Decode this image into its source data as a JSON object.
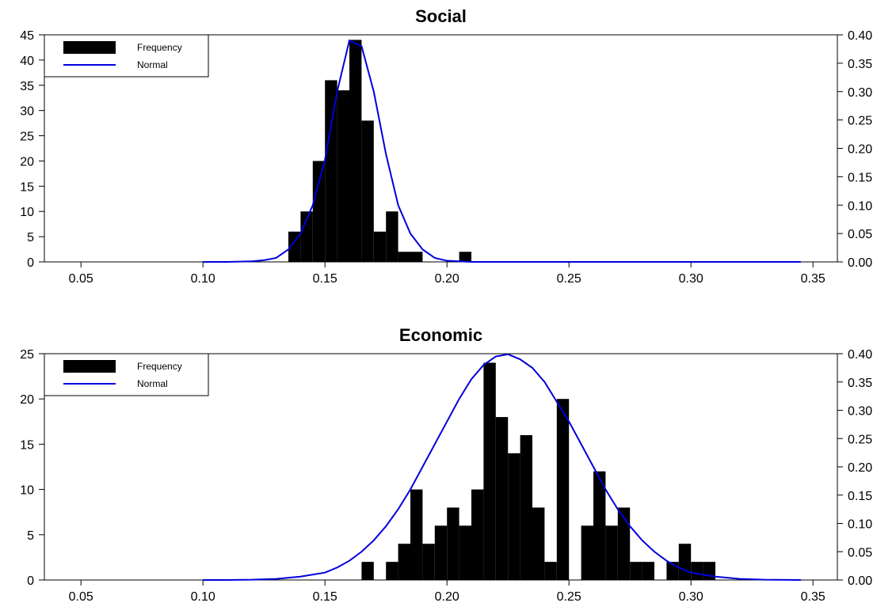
{
  "chart_data": [
    {
      "type": "bar",
      "title": "Social",
      "xlabel": "",
      "ylabel": "",
      "xlim": [
        0.035,
        0.36
      ],
      "ylim": [
        0,
        45
      ],
      "y2lim": [
        0,
        0.4
      ],
      "x_ticks": [
        "0.05",
        "0.10",
        "0.15",
        "0.20",
        "0.25",
        "0.30",
        "0.35"
      ],
      "x_tick_values": [
        0.05,
        0.1,
        0.15,
        0.2,
        0.25,
        0.3,
        0.35
      ],
      "y_ticks": [
        "0",
        "5",
        "10",
        "15",
        "20",
        "25",
        "30",
        "35",
        "40",
        "45"
      ],
      "y_tick_values": [
        0,
        5,
        10,
        15,
        20,
        25,
        30,
        35,
        40,
        45
      ],
      "y2_ticks": [
        "0.00",
        "0.05",
        "0.10",
        "0.15",
        "0.20",
        "0.25",
        "0.30",
        "0.35",
        "0.40"
      ],
      "y2_tick_values": [
        0,
        0.05,
        0.1,
        0.15,
        0.2,
        0.25,
        0.3,
        0.35,
        0.4
      ],
      "bin_width": 0.005,
      "bins": [
        {
          "x": 0.1375,
          "value": 6
        },
        {
          "x": 0.1425,
          "value": 10
        },
        {
          "x": 0.1475,
          "value": 20
        },
        {
          "x": 0.1525,
          "value": 36
        },
        {
          "x": 0.1575,
          "value": 34
        },
        {
          "x": 0.1625,
          "value": 44
        },
        {
          "x": 0.1675,
          "value": 28
        },
        {
          "x": 0.1725,
          "value": 6
        },
        {
          "x": 0.1775,
          "value": 10
        },
        {
          "x": 0.1825,
          "value": 2
        },
        {
          "x": 0.1875,
          "value": 2
        },
        {
          "x": 0.2075,
          "value": 2
        }
      ],
      "series": [
        {
          "name": "Frequency",
          "kind": "bar",
          "color": "#000000"
        },
        {
          "name": "Normal",
          "kind": "line",
          "color": "#0000dd",
          "x": [
            0.1,
            0.11,
            0.12,
            0.125,
            0.13,
            0.135,
            0.14,
            0.145,
            0.15,
            0.155,
            0.16,
            0.165,
            0.17,
            0.175,
            0.18,
            0.185,
            0.19,
            0.195,
            0.2,
            0.21,
            0.22,
            0.25,
            0.3,
            0.345
          ],
          "y": [
            0.0,
            0.0,
            0.001,
            0.003,
            0.007,
            0.022,
            0.05,
            0.1,
            0.18,
            0.3,
            0.39,
            0.38,
            0.3,
            0.19,
            0.1,
            0.05,
            0.022,
            0.007,
            0.002,
            0.0,
            0.0,
            0.0,
            0.0,
            0.0
          ]
        }
      ],
      "legend_position": "top-left"
    },
    {
      "type": "bar",
      "title": "Economic",
      "xlabel": "",
      "ylabel": "",
      "xlim": [
        0.035,
        0.36
      ],
      "ylim": [
        0,
        25
      ],
      "y2lim": [
        0,
        0.4
      ],
      "x_ticks": [
        "0.05",
        "0.10",
        "0.15",
        "0.20",
        "0.25",
        "0.30",
        "0.35"
      ],
      "x_tick_values": [
        0.05,
        0.1,
        0.15,
        0.2,
        0.25,
        0.3,
        0.35
      ],
      "y_ticks": [
        "0",
        "5",
        "10",
        "15",
        "20",
        "25"
      ],
      "y_tick_values": [
        0,
        5,
        10,
        15,
        20,
        25
      ],
      "y2_ticks": [
        "0.00",
        "0.05",
        "0.10",
        "0.15",
        "0.20",
        "0.25",
        "0.30",
        "0.35",
        "0.40"
      ],
      "y2_tick_values": [
        0,
        0.05,
        0.1,
        0.15,
        0.2,
        0.25,
        0.3,
        0.35,
        0.4
      ],
      "bin_width": 0.005,
      "bins": [
        {
          "x": 0.1675,
          "value": 2
        },
        {
          "x": 0.1775,
          "value": 2
        },
        {
          "x": 0.1825,
          "value": 4
        },
        {
          "x": 0.1875,
          "value": 10
        },
        {
          "x": 0.1925,
          "value": 4
        },
        {
          "x": 0.1975,
          "value": 6
        },
        {
          "x": 0.2025,
          "value": 8
        },
        {
          "x": 0.2075,
          "value": 6
        },
        {
          "x": 0.2125,
          "value": 10
        },
        {
          "x": 0.2175,
          "value": 24
        },
        {
          "x": 0.2225,
          "value": 18
        },
        {
          "x": 0.2275,
          "value": 14
        },
        {
          "x": 0.2325,
          "value": 16
        },
        {
          "x": 0.2375,
          "value": 8
        },
        {
          "x": 0.2425,
          "value": 2
        },
        {
          "x": 0.2475,
          "value": 20
        },
        {
          "x": 0.2575,
          "value": 6
        },
        {
          "x": 0.2625,
          "value": 12
        },
        {
          "x": 0.2675,
          "value": 6
        },
        {
          "x": 0.2725,
          "value": 8
        },
        {
          "x": 0.2775,
          "value": 2
        },
        {
          "x": 0.2825,
          "value": 2
        },
        {
          "x": 0.2925,
          "value": 2
        },
        {
          "x": 0.2975,
          "value": 4
        },
        {
          "x": 0.3025,
          "value": 2
        },
        {
          "x": 0.3075,
          "value": 2
        }
      ],
      "series": [
        {
          "name": "Frequency",
          "kind": "bar",
          "color": "#000000"
        },
        {
          "name": "Normal",
          "kind": "line",
          "color": "#0000dd",
          "x": [
            0.1,
            0.11,
            0.12,
            0.13,
            0.14,
            0.15,
            0.155,
            0.16,
            0.165,
            0.17,
            0.175,
            0.18,
            0.185,
            0.19,
            0.195,
            0.2,
            0.205,
            0.21,
            0.215,
            0.22,
            0.225,
            0.23,
            0.235,
            0.24,
            0.245,
            0.25,
            0.255,
            0.26,
            0.265,
            0.27,
            0.275,
            0.28,
            0.285,
            0.29,
            0.295,
            0.3,
            0.31,
            0.32,
            0.33,
            0.345
          ],
          "y": [
            0.0,
            0.0,
            0.0005,
            0.002,
            0.006,
            0.013,
            0.022,
            0.034,
            0.05,
            0.07,
            0.095,
            0.125,
            0.16,
            0.2,
            0.24,
            0.28,
            0.32,
            0.355,
            0.38,
            0.395,
            0.399,
            0.39,
            0.375,
            0.35,
            0.315,
            0.28,
            0.24,
            0.2,
            0.16,
            0.125,
            0.095,
            0.07,
            0.05,
            0.034,
            0.022,
            0.013,
            0.006,
            0.002,
            0.0005,
            0.0
          ]
        }
      ],
      "legend_position": "top-left"
    }
  ]
}
